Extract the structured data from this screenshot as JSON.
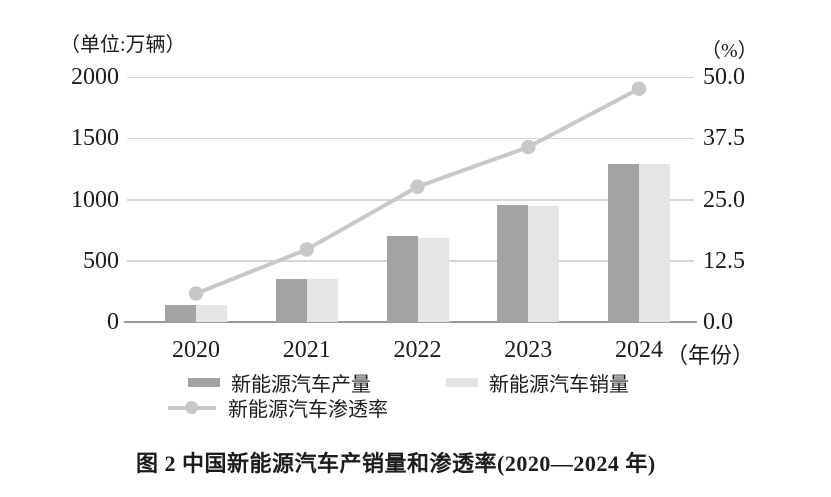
{
  "figure": {
    "caption": "图 2  中国新能源汽车产销量和渗透率(2020—2024 年)"
  },
  "chart_data": {
    "type": "bar+line combo",
    "categories": [
      "2020",
      "2021",
      "2022",
      "2023",
      "2024"
    ],
    "series": [
      {
        "name": "新能源汽车产量",
        "type": "bar",
        "axis": "left",
        "values": [
          136.6,
          354.5,
          705.8,
          958.7,
          1288.8
        ]
      },
      {
        "name": "新能源汽车销量",
        "type": "bar",
        "axis": "left",
        "values": [
          136.7,
          352.1,
          688.7,
          949.5,
          1286.6
        ]
      },
      {
        "name": "新能源汽车渗透率",
        "type": "line",
        "axis": "right",
        "values": [
          5.8,
          14.8,
          27.6,
          35.7,
          47.6
        ]
      }
    ],
    "left_axis": {
      "unit": "（单位:万辆）",
      "ticks": [
        "0",
        "500",
        "1000",
        "1500",
        "2000"
      ],
      "range": [
        0,
        2000
      ]
    },
    "right_axis": {
      "unit": "（%）",
      "ticks": [
        "0.0",
        "12.5",
        "25.0",
        "37.5",
        "50.0"
      ],
      "range": [
        0,
        50
      ]
    },
    "x_suffix": "（年份）",
    "legend_position": "bottom",
    "grid": "horizontal",
    "colors": {
      "production_bar": "#a3a3a3",
      "sales_bar": "#e5e5e5",
      "penetration_line": "#c8c8c8",
      "gridline": "#d6d6d6",
      "baseline": "#9c9c9c",
      "text": "#1c1c1c"
    }
  }
}
